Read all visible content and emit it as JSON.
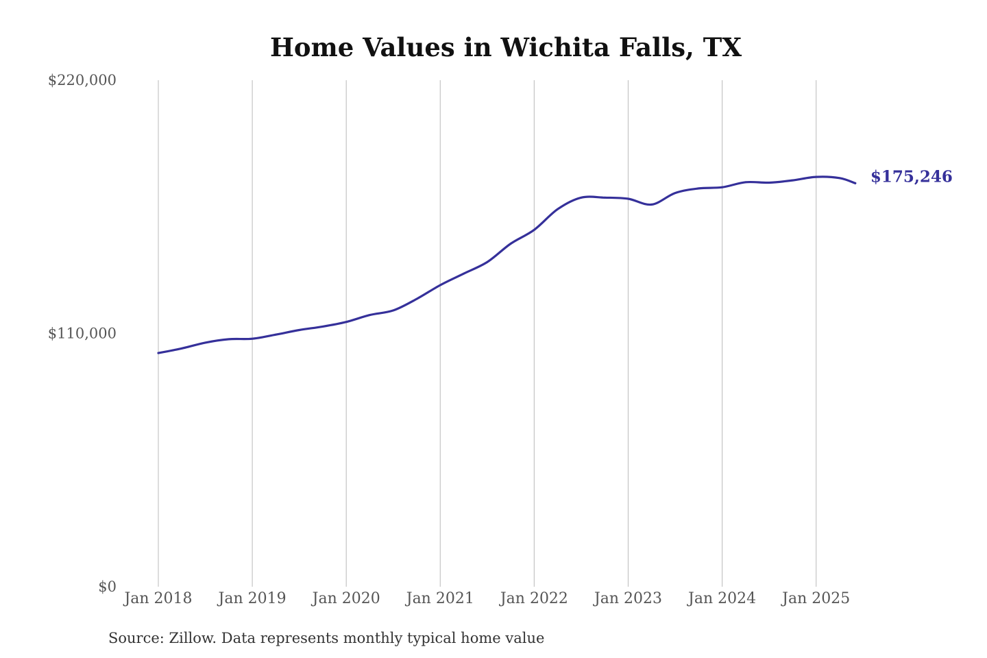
{
  "chart_data": {
    "type": "line",
    "title": "Home Values in Wichita Falls, TX",
    "xlabel": "",
    "ylabel": "",
    "ylim": [
      0,
      220000
    ],
    "y_ticks": [
      {
        "value": 220000,
        "label": "$220,000"
      },
      {
        "value": 110000,
        "label": "$110,000"
      },
      {
        "value": 0,
        "label": "$0"
      }
    ],
    "x_ticks": [
      {
        "value": "2018-01",
        "label": "Jan 2018"
      },
      {
        "value": "2019-01",
        "label": "Jan 2019"
      },
      {
        "value": "2020-01",
        "label": "Jan 2020"
      },
      {
        "value": "2021-01",
        "label": "Jan 2021"
      },
      {
        "value": "2022-01",
        "label": "Jan 2022"
      },
      {
        "value": "2023-01",
        "label": "Jan 2023"
      },
      {
        "value": "2024-01",
        "label": "Jan 2024"
      },
      {
        "value": "2025-01",
        "label": "Jan 2025"
      }
    ],
    "grid": "vertical",
    "legend": "none",
    "series": [
      {
        "color": "#35309a",
        "end_label": "$175,246",
        "points": [
          {
            "x": "2018-01",
            "y": 101500
          },
          {
            "x": "2018-04",
            "y": 103500
          },
          {
            "x": "2018-07",
            "y": 106000
          },
          {
            "x": "2018-10",
            "y": 107500
          },
          {
            "x": "2019-01",
            "y": 107700
          },
          {
            "x": "2019-04",
            "y": 109500
          },
          {
            "x": "2019-07",
            "y": 111500
          },
          {
            "x": "2019-10",
            "y": 113000
          },
          {
            "x": "2020-01",
            "y": 115000
          },
          {
            "x": "2020-04",
            "y": 118000
          },
          {
            "x": "2020-07",
            "y": 120000
          },
          {
            "x": "2020-10",
            "y": 125000
          },
          {
            "x": "2021-01",
            "y": 131000
          },
          {
            "x": "2021-04",
            "y": 136000
          },
          {
            "x": "2021-07",
            "y": 141000
          },
          {
            "x": "2021-10",
            "y": 149000
          },
          {
            "x": "2022-01",
            "y": 155000
          },
          {
            "x": "2022-04",
            "y": 164000
          },
          {
            "x": "2022-07",
            "y": 169000
          },
          {
            "x": "2022-10",
            "y": 169000
          },
          {
            "x": "2023-01",
            "y": 168500
          },
          {
            "x": "2023-04",
            "y": 166000
          },
          {
            "x": "2023-07",
            "y": 171000
          },
          {
            "x": "2023-10",
            "y": 173000
          },
          {
            "x": "2024-01",
            "y": 173500
          },
          {
            "x": "2024-04",
            "y": 175700
          },
          {
            "x": "2024-07",
            "y": 175500
          },
          {
            "x": "2024-10",
            "y": 176500
          },
          {
            "x": "2025-01",
            "y": 178000
          },
          {
            "x": "2025-04",
            "y": 177500
          },
          {
            "x": "2025-06",
            "y": 175246
          }
        ]
      }
    ]
  },
  "source_note": "Source: Zillow. Data represents monthly typical home value"
}
